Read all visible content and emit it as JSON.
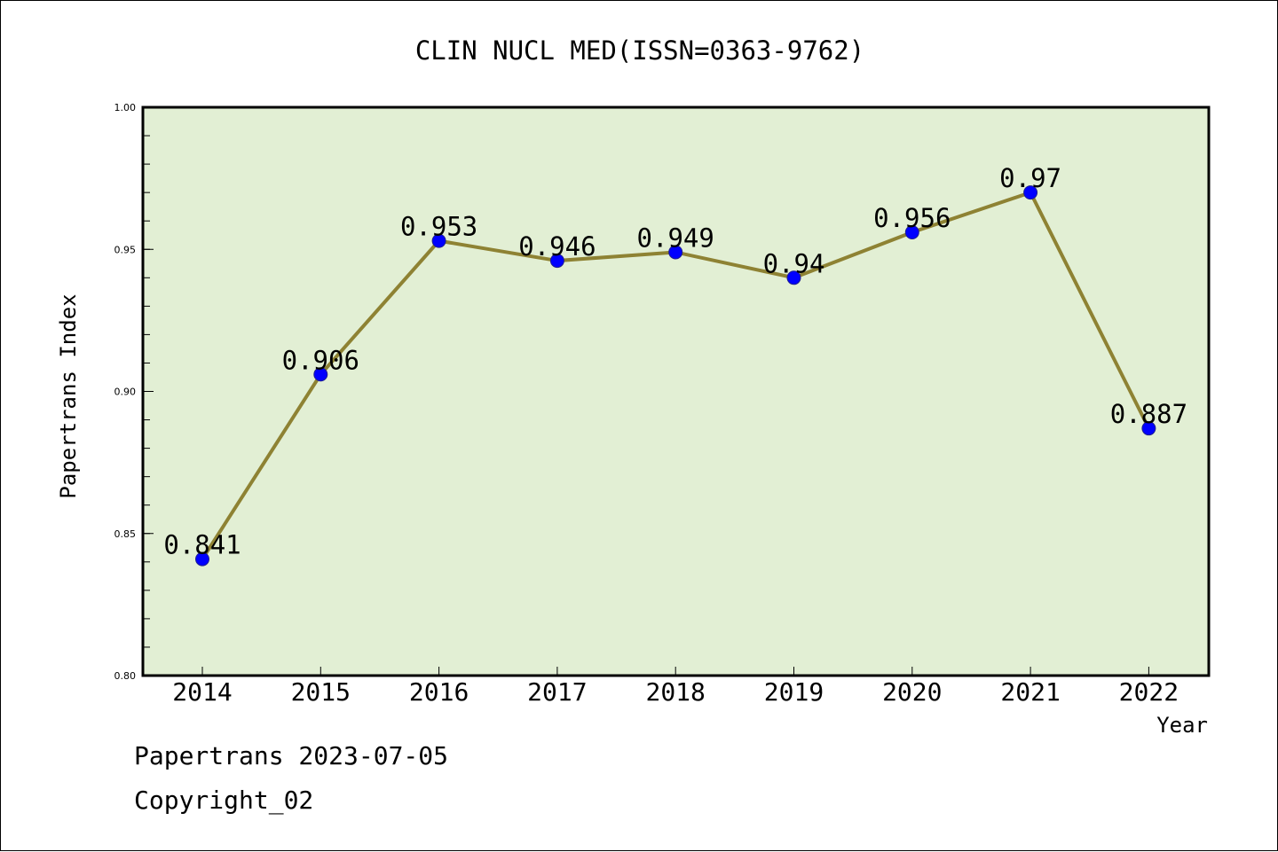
{
  "colors": {
    "plot_background": "#e2efd4",
    "line": "#8e8233",
    "marker": "#0000ff",
    "marker_edge": "#1f1f8f",
    "axes": "#000000"
  },
  "chart_data": {
    "type": "line",
    "title": "CLIN NUCL MED(ISSN=0363-9762)",
    "xlabel": "Year",
    "ylabel": "Papertrans Index",
    "categories": [
      "2014",
      "2015",
      "2016",
      "2017",
      "2018",
      "2019",
      "2020",
      "2021",
      "2022"
    ],
    "values": [
      0.841,
      0.906,
      0.953,
      0.946,
      0.949,
      0.94,
      0.956,
      0.97,
      0.887
    ],
    "data_labels": [
      "0.841",
      "0.906",
      "0.953",
      "0.946",
      "0.949",
      "0.94",
      "0.956",
      "0.97",
      "0.887"
    ],
    "ylim": [
      0.8,
      1.0
    ],
    "yticks": [
      0.8,
      0.85,
      0.9,
      0.95,
      1.0
    ],
    "ytick_labels": [
      "0.80",
      "0.85",
      "0.90",
      "0.95",
      "1.00"
    ],
    "y_minor_step": 0.01,
    "grid": false,
    "legend": "none"
  },
  "footer": {
    "line1": "Papertrans 2023-07-05",
    "line2": "Copyright_02"
  }
}
